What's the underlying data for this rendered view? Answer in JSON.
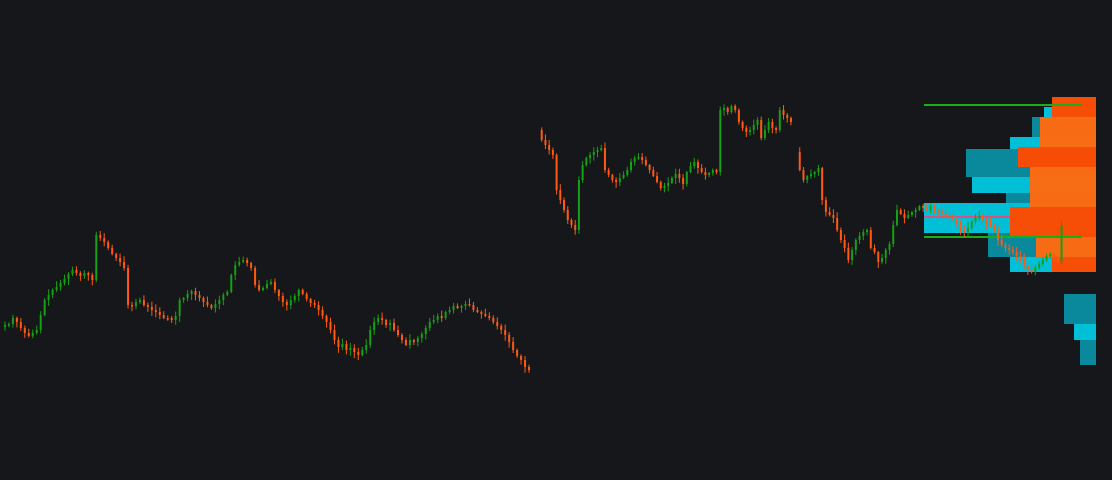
{
  "colors": {
    "background": "#16171a",
    "up": "#16a016",
    "down": "#ff5a14",
    "profile_teal_dark": "#0a8fa3",
    "profile_teal_light": "#00c8e0",
    "profile_orange_dark": "#ff4a00",
    "profile_orange_light": "#ff6a10",
    "poc_line": "#ff3e6e",
    "level_line": "#18b018"
  },
  "chart_data": {
    "type": "candlestick-with-volume-profile",
    "title": "",
    "xlabel": "",
    "ylabel": "",
    "grid": false,
    "legend": "none",
    "ylim": [
      0,
      480
    ],
    "segments": [
      {
        "name": "",
        "closes": [
          327,
          325,
          324,
          318,
          322,
          328,
          333,
          336,
          333,
          330,
          315,
          300,
          295,
          290,
          287,
          283,
          279,
          274,
          270,
          273,
          276,
          273,
          275,
          280,
          235,
          238,
          242,
          248,
          254,
          258,
          262,
          268,
          305,
          306,
          302,
          300,
          305,
          307,
          310,
          312,
          315,
          318,
          318,
          320,
          316,
          300,
          298,
          294,
          291,
          295,
          298,
          302,
          305,
          308,
          304,
          300,
          295,
          292,
          275,
          265,
          262,
          260,
          263,
          268,
          285,
          290,
          288,
          284,
          282,
          290,
          296,
          302,
          305,
          300,
          296,
          290,
          294,
          299,
          303,
          305,
          310,
          316,
          322,
          330,
          340,
          347,
          344,
          350,
          348,
          352,
          355,
          350,
          345,
          330,
          322,
          318,
          320,
          325,
          323,
          330,
          335,
          340,
          345,
          340,
          342,
          338,
          334,
          328,
          322,
          320,
          316,
          318,
          312,
          310,
          306,
          308,
          306,
          304,
          305,
          310,
          312,
          314,
          316,
          318,
          322,
          326,
          330,
          335,
          342,
          350,
          356,
          360,
          367,
          370
        ]
      },
      {
        "name": "",
        "closes": [
          130,
          140,
          145,
          150,
          155,
          190,
          200,
          210,
          220,
          225,
          230,
          180,
          165,
          158,
          155,
          152,
          150,
          148,
          170,
          175,
          180,
          182,
          178,
          175,
          170,
          162,
          158,
          157,
          160,
          165,
          170,
          176,
          182,
          188,
          186,
          183,
          178,
          174,
          178,
          184,
          172,
          166,
          162,
          168,
          172,
          175,
          173,
          170,
          172,
          110,
          108,
          112,
          106,
          110,
          122,
          128,
          132,
          130,
          125,
          120,
          138,
          130,
          122,
          128,
          130,
          110,
          115,
          118,
          122
        ]
      },
      {
        "name": "",
        "closes": [
          152,
          170,
          180,
          176,
          174,
          172,
          168,
          200,
          212,
          215,
          218,
          230,
          240,
          248,
          260,
          250,
          240,
          236,
          232,
          230,
          248,
          252,
          262,
          258,
          250,
          244,
          225,
          210,
          214,
          218,
          215,
          212,
          210,
          206,
          208,
          210,
          206,
          210,
          212,
          214,
          216,
          218,
          220,
          224,
          230,
          232,
          228,
          222,
          218,
          216,
          220,
          224,
          226,
          230,
          240,
          245,
          248,
          250,
          252,
          256,
          258,
          266,
          270,
          272,
          268,
          264,
          260,
          256,
          254,
          258,
          262,
          225
        ]
      }
    ],
    "horizontal_levels": [
      {
        "name": "",
        "y": 105
      },
      {
        "name": "",
        "y": 237
      }
    ],
    "poc_y": 217,
    "volume_profile": {
      "teal": [
        {
          "y": 97,
          "h": 10,
          "w": 44
        },
        {
          "y": 107,
          "h": 10,
          "w": 52
        },
        {
          "y": 117,
          "h": 20,
          "w": 64
        },
        {
          "y": 137,
          "h": 12,
          "w": 86
        },
        {
          "y": 149,
          "h": 28,
          "w": 130
        },
        {
          "y": 177,
          "h": 16,
          "w": 124
        },
        {
          "y": 193,
          "h": 10,
          "w": 90
        },
        {
          "y": 203,
          "h": 30,
          "w": 172
        },
        {
          "y": 233,
          "h": 24,
          "w": 108
        },
        {
          "y": 257,
          "h": 15,
          "w": 86
        },
        {
          "y": 294,
          "h": 30,
          "w": 32
        },
        {
          "y": 324,
          "h": 16,
          "w": 22
        },
        {
          "y": 340,
          "h": 25,
          "w": 16
        }
      ],
      "orange": [
        {
          "y": 97,
          "h": 20,
          "w": 44
        },
        {
          "y": 117,
          "h": 30,
          "w": 56
        },
        {
          "y": 147,
          "h": 20,
          "w": 78
        },
        {
          "y": 167,
          "h": 40,
          "w": 66
        },
        {
          "y": 207,
          "h": 30,
          "w": 86
        },
        {
          "y": 237,
          "h": 20,
          "w": 60
        },
        {
          "y": 257,
          "h": 15,
          "w": 44
        }
      ]
    }
  }
}
